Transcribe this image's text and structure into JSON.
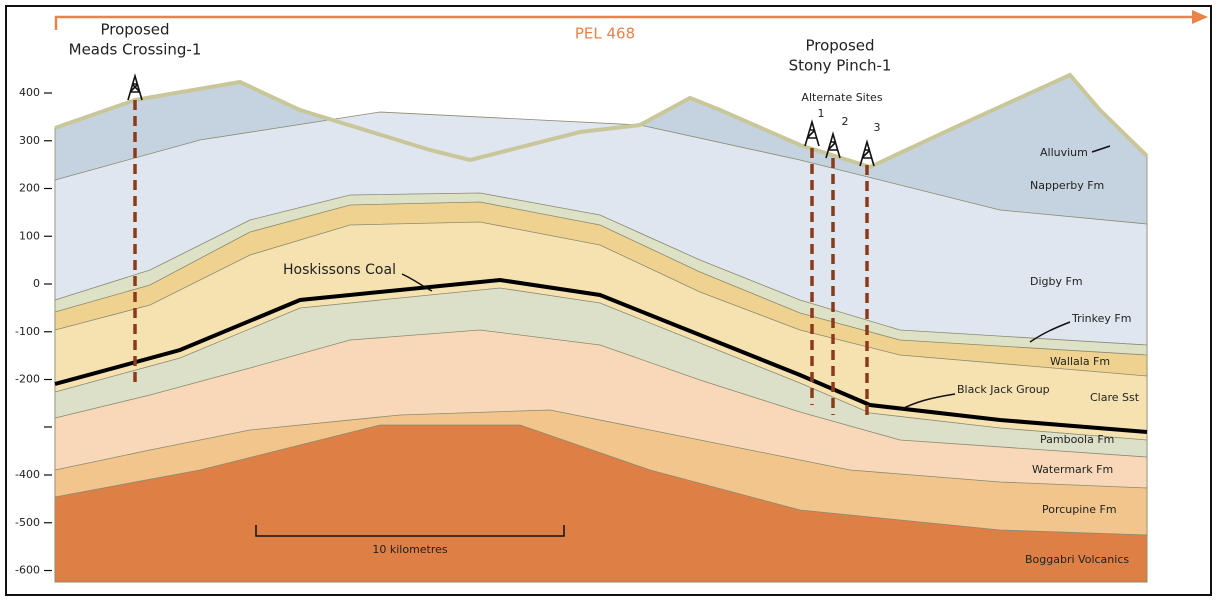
{
  "header": {
    "permit": "PEL 468"
  },
  "wells": [
    {
      "lines": [
        "Proposed",
        "Meads Crossing-1"
      ]
    },
    {
      "lines": [
        "Proposed",
        "Stony Pinch-1"
      ],
      "note": "Alternate Sites",
      "sites": [
        "1",
        "2",
        "3"
      ]
    }
  ],
  "axis": {
    "ticks": [
      400,
      300,
      200,
      100,
      0,
      -100,
      -200,
      -400,
      -500,
      -600
    ]
  },
  "layers": [
    "Alluvium",
    "Napperby Fm",
    "Digby Fm",
    "Trinkey Fm",
    "Wallala Fm",
    "Clare Sst",
    "Black Jack Group",
    "Pamboola Fm",
    "Watermark Fm",
    "Porcupine Fm",
    "Boggabri Volcanics"
  ],
  "coal": "Hoskissons Coal",
  "scale": "10 kilometres"
}
